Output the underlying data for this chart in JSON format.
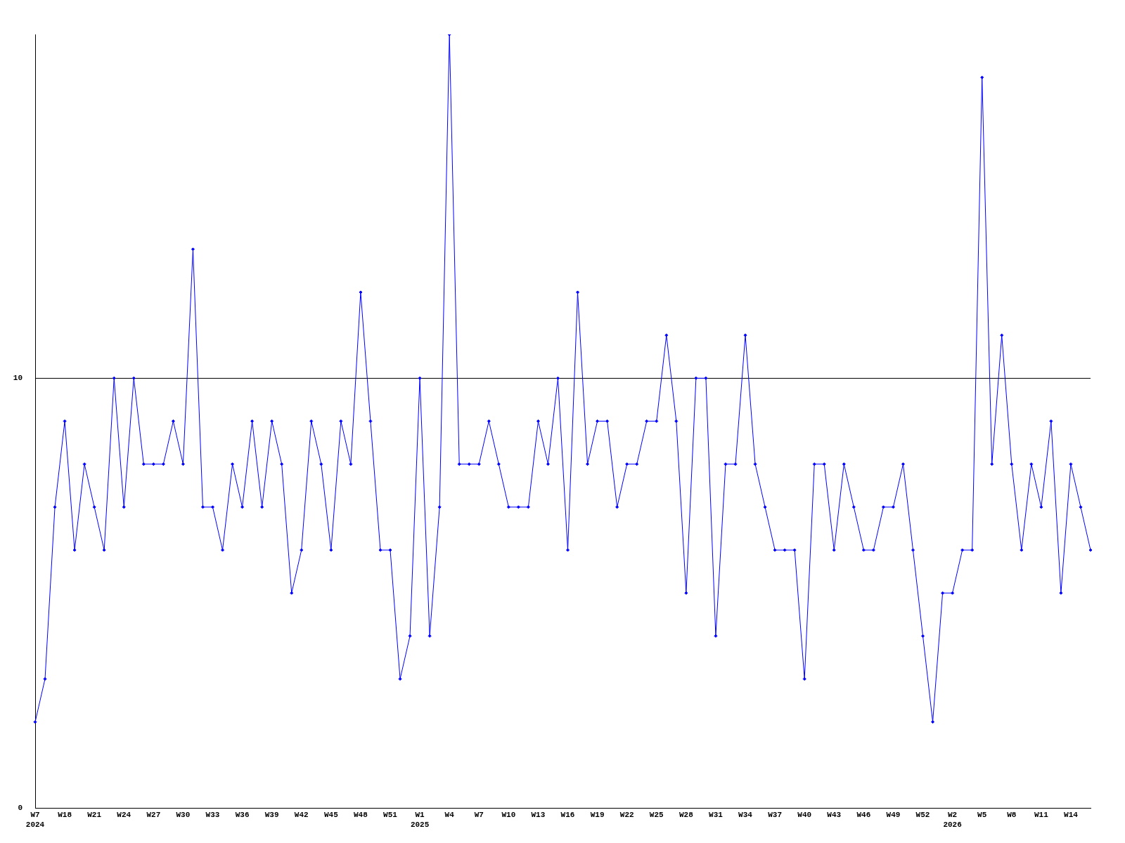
{
  "chart_data": {
    "type": "line",
    "categories": [
      "W7\n2024",
      null,
      null,
      "W18",
      null,
      null,
      "W21",
      null,
      null,
      "W24",
      null,
      null,
      "W27",
      null,
      null,
      "W30",
      null,
      null,
      "W33",
      null,
      null,
      "W36",
      null,
      null,
      "W39",
      null,
      null,
      "W42",
      null,
      null,
      "W45",
      null,
      null,
      "W48",
      null,
      null,
      "W51",
      null,
      null,
      "W1\n2025",
      null,
      null,
      "W4",
      null,
      null,
      "W7",
      null,
      null,
      "W10",
      null,
      null,
      "W13",
      null,
      null,
      "W16",
      null,
      null,
      "W19",
      null,
      null,
      "W22",
      null,
      null,
      "W25",
      null,
      null,
      "W28",
      null,
      null,
      "W31",
      null,
      null,
      "W34",
      null,
      null,
      "W37",
      null,
      null,
      "W40",
      null,
      null,
      "W43",
      null,
      null,
      "W46",
      null,
      null,
      "W49",
      null,
      null,
      "W52",
      null,
      null,
      "W2\n2026",
      null,
      null,
      "W5",
      null,
      null,
      "W8",
      null,
      null,
      "W11",
      null,
      null,
      "W14",
      null,
      null
    ],
    "series": [
      {
        "color": "#0000ff",
        "values": [
          2,
          3,
          7,
          9,
          6,
          8,
          7,
          6,
          10,
          7,
          10,
          8,
          8,
          8,
          9,
          8,
          13,
          7,
          7,
          6,
          8,
          7,
          9,
          7,
          9,
          8,
          5,
          6,
          9,
          8,
          6,
          9,
          8,
          12,
          9,
          6,
          6,
          3,
          4,
          10,
          4,
          7,
          18,
          8,
          8,
          8,
          9,
          8,
          7,
          7,
          7,
          9,
          8,
          10,
          6,
          12,
          8,
          9,
          9,
          7,
          8,
          8,
          9,
          9,
          11,
          9,
          5,
          10,
          10,
          4,
          8,
          8,
          11,
          8,
          7,
          6,
          6,
          6,
          3,
          8,
          8,
          6,
          8,
          7,
          6,
          6,
          7,
          7,
          8,
          6,
          4,
          2,
          5,
          5,
          6,
          6,
          17,
          8,
          11,
          8,
          6,
          8,
          7,
          9,
          5,
          8,
          7,
          6
        ]
      }
    ],
    "ylim": [
      0,
      18
    ],
    "yticks": [
      0,
      10
    ],
    "grid": "y",
    "legend": false,
    "marker": "diamond",
    "line_style": "solid"
  }
}
